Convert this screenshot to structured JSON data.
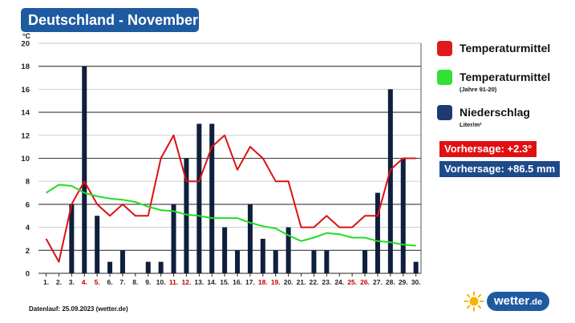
{
  "header": {
    "title": "Deutschland - November"
  },
  "chart_data": {
    "type": "bar+line",
    "y_unit": "°C",
    "ylim": [
      0,
      20
    ],
    "y_ticks": [
      0,
      2,
      4,
      6,
      8,
      10,
      12,
      14,
      16,
      18,
      20
    ],
    "categories": [
      "1.",
      "2.",
      "3.",
      "4.",
      "5.",
      "6.",
      "7.",
      "8.",
      "9.",
      "10.",
      "11.",
      "12.",
      "13.",
      "14.",
      "15.",
      "16.",
      "17.",
      "18.",
      "19.",
      "20.",
      "21.",
      "22.",
      "23.",
      "24.",
      "25.",
      "26.",
      "27.",
      "28.",
      "29.",
      "30."
    ],
    "weekend_days": [
      "4.",
      "5.",
      "11.",
      "12.",
      "18.",
      "19.",
      "25.",
      "26."
    ],
    "series": [
      {
        "name": "Niederschlag",
        "kind": "bar",
        "color": "#0f1f3d",
        "values": [
          0,
          0,
          6,
          18,
          5,
          1,
          2,
          0,
          1,
          1,
          6,
          10,
          13,
          13,
          4,
          2,
          6,
          3,
          2,
          4,
          0,
          2,
          2,
          0,
          0,
          2,
          7,
          16,
          10,
          1
        ]
      },
      {
        "name": "Temperaturmittel",
        "kind": "line",
        "color": "#dd1111",
        "values": [
          3,
          1,
          6,
          8,
          6,
          5,
          6,
          5,
          5,
          10,
          12,
          8,
          8,
          11,
          12,
          9,
          11,
          10,
          8,
          8,
          4,
          4,
          5,
          4,
          4,
          5,
          5,
          9,
          10,
          10
        ]
      },
      {
        "name": "Temperaturmittel (Jahre 91-20)",
        "kind": "line",
        "color": "#22dd22",
        "values": [
          7,
          7.7,
          7.6,
          7,
          6.7,
          6.5,
          6.4,
          6.2,
          5.8,
          5.5,
          5.4,
          5.1,
          5,
          4.8,
          4.8,
          4.8,
          4.4,
          4.1,
          3.9,
          3.3,
          2.8,
          3.1,
          3.5,
          3.4,
          3.1,
          3.1,
          2.8,
          2.7,
          2.5,
          2.4
        ]
      }
    ]
  },
  "legend": [
    {
      "label": "Temperaturmittel",
      "sub": "",
      "color": "#e01b1b"
    },
    {
      "label": "Temperaturmittel",
      "sub": "(Jahre 91-20)",
      "color": "#33e033"
    },
    {
      "label": "Niederschlag",
      "sub": "Liter/m²",
      "color": "#1f3a6e"
    }
  ],
  "forecast": {
    "temperature": "Vorhersage: +2.3°",
    "precipitation": "Vorhersage: +86.5 mm",
    "temperature_color": "#e01010",
    "precipitation_color": "#1e4a8a"
  },
  "footer": {
    "text": "Datenlauf: 25.09.2023 (wetter.de)"
  },
  "logo": {
    "text": "wetter",
    "tld": ".de"
  }
}
